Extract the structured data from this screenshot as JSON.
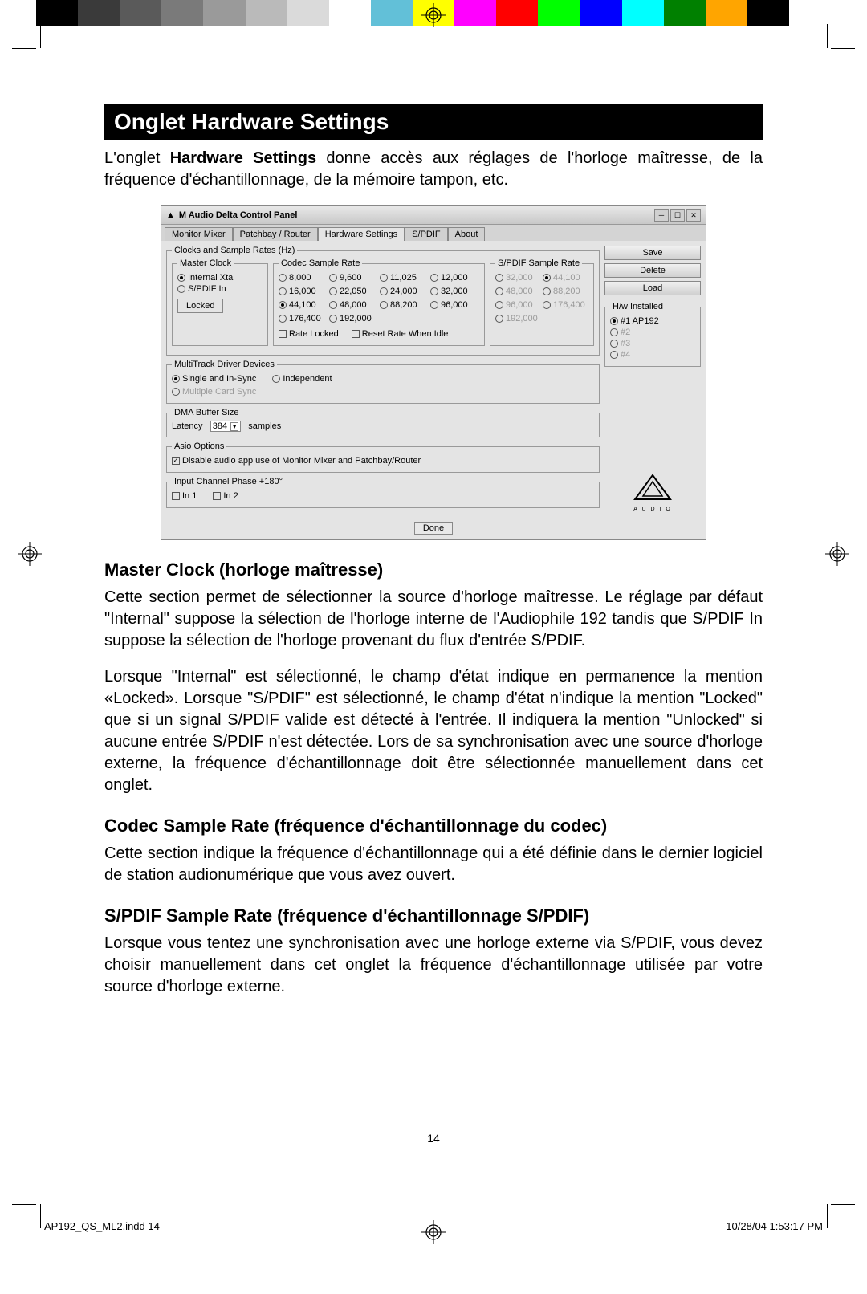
{
  "colorbar": [
    "#000000",
    "#3a3a3a",
    "#5a5a5a",
    "#7a7a7a",
    "#9a9a9a",
    "#bababa",
    "#dadada",
    "#ffffff",
    "#62c0d8",
    "#ffff00",
    "#ff00ff",
    "#ff0000",
    "#00ff00",
    "#0000ff",
    "#00ffff",
    "#008000",
    "#ffa500",
    "#000000",
    "#ffffff"
  ],
  "header": "Onglet Hardware Settings",
  "intro_pre": "L'onglet ",
  "intro_bold": "Hardware Settings",
  "intro_post": " donne accès aux réglages de l'horloge maîtresse, de la fréquence d'échantillonnage, de la mémoire tampon, etc.",
  "win": {
    "title": "M Audio Delta Control Panel",
    "tabs": [
      "Monitor Mixer",
      "Patchbay / Router",
      "Hardware Settings",
      "S/PDIF",
      "About"
    ],
    "active_tab": 2,
    "clocks_legend": "Clocks and Sample Rates (Hz)",
    "master_clock_legend": "Master Clock",
    "mc_opts": [
      [
        true,
        "Internal Xtal"
      ],
      [
        false,
        "S/PDIF In"
      ]
    ],
    "mc_locked": "Locked",
    "codec_legend": "Codec Sample Rate",
    "codec_rates": [
      [
        false,
        "8,000"
      ],
      [
        false,
        "9,600"
      ],
      [
        false,
        "11,025"
      ],
      [
        false,
        "12,000"
      ],
      [
        false,
        "16,000"
      ],
      [
        false,
        "22,050"
      ],
      [
        false,
        "24,000"
      ],
      [
        false,
        "32,000"
      ],
      [
        true,
        "44,100"
      ],
      [
        false,
        "48,000"
      ],
      [
        false,
        "88,200"
      ],
      [
        false,
        "96,000"
      ],
      [
        false,
        "176,400"
      ],
      [
        false,
        "192,000"
      ]
    ],
    "rate_locked_chk": [
      false,
      "Rate Locked"
    ],
    "reset_rate_chk": [
      false,
      "Reset Rate When Idle"
    ],
    "spdif_legend": "S/PDIF Sample Rate",
    "spdif_rates": [
      [
        false,
        "32,000"
      ],
      [
        true,
        "44,100"
      ],
      [
        false,
        "48,000"
      ],
      [
        false,
        "88,200"
      ],
      [
        false,
        "96,000"
      ],
      [
        false,
        "176,400"
      ],
      [
        false,
        "192,000"
      ]
    ],
    "multi_legend": "MultiTrack Driver Devices",
    "multi_opts": [
      [
        true,
        "Single and In-Sync"
      ],
      [
        false,
        "Independent"
      ]
    ],
    "multi_sync": [
      false,
      "Multiple Card Sync"
    ],
    "dma_legend": "DMA Buffer Size",
    "dma_label": "Latency",
    "dma_value": "384",
    "dma_unit": "samples",
    "asio_legend": "Asio Options",
    "asio_chk": [
      true,
      "Disable audio app use of Monitor Mixer and Patchbay/Router"
    ],
    "phase_legend": "Input Channel Phase +180°",
    "phase_opts": [
      [
        false,
        "In 1"
      ],
      [
        false,
        "In 2"
      ]
    ],
    "side_btns": [
      "Save",
      "Delete",
      "Load"
    ],
    "hw_legend": "H/w Installed",
    "hw_items": [
      [
        true,
        "#1 AP192"
      ],
      [
        false,
        "#2"
      ],
      [
        false,
        "#3"
      ],
      [
        false,
        "#4"
      ]
    ],
    "done": "Done",
    "logo_text": "A U D I O"
  },
  "s1_h": "Master Clock (horloge maîtresse)",
  "s1_p1": "Cette section permet de sélectionner la source d'horloge maîtresse. Le réglage par défaut \"Internal\" suppose la sélection de l'horloge interne de l'Audiophile 192 tandis que S/PDIF In suppose la sélection de l'horloge provenant du flux d'entrée S/PDIF.",
  "s1_p2": "Lorsque \"Internal\" est sélectionné, le champ d'état indique en permanence la mention «Locked». Lorsque \"S/PDIF\" est sélectionné, le champ d'état n'indique la mention \"Locked\" que si un signal S/PDIF valide est détecté à l'entrée.  Il indiquera la mention \"Unlocked\" si aucune entrée S/PDIF n'est détectée. Lors de sa synchronisation avec une source d'horloge externe, la fréquence d'échantillonnage doit être sélectionnée manuellement dans cet onglet.",
  "s2_h": "Codec Sample Rate (fréquence d'échantillonnage du codec)",
  "s2_p": "Cette section indique la fréquence d'échantillonnage qui a été définie dans le dernier logiciel de station audionumérique que vous avez ouvert.",
  "s3_h": "S/PDIF Sample Rate (fréquence d'échantillonnage S/PDIF)",
  "s3_p": "Lorsque vous tentez une synchronisation avec une horloge externe via S/PDIF, vous devez choisir manuellement dans cet onglet la fréquence d'échantillonnage utilisée par votre source d'horloge externe.",
  "pagenum": "14",
  "slug_left": "AP192_QS_ML2.indd   14",
  "slug_right": "10/28/04   1:53:17 PM"
}
